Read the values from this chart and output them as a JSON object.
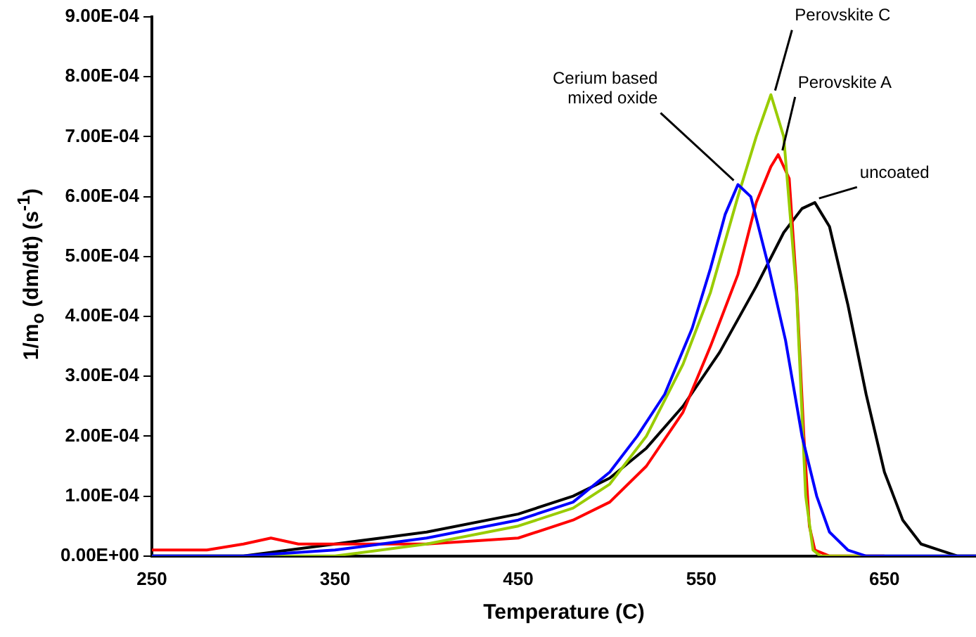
{
  "chart_data": {
    "type": "line",
    "xlabel": "Temperature (C)",
    "ylabel": "1/m$_{o}$ (dm/dt) (s$^{-1}$)",
    "xlim": [
      250,
      700
    ],
    "xticks": [
      250,
      350,
      450,
      550,
      650
    ],
    "ylim": [
      0,
      0.0009
    ],
    "yticks": [
      {
        "value": 0,
        "label": "0.00E+00"
      },
      {
        "value": 0.0001,
        "label": "1.00E-04"
      },
      {
        "value": 0.0002,
        "label": "2.00E-04"
      },
      {
        "value": 0.0003,
        "label": "3.00E-04"
      },
      {
        "value": 0.0004,
        "label": "4.00E-04"
      },
      {
        "value": 0.0005,
        "label": "5.00E-04"
      },
      {
        "value": 0.0006,
        "label": "6.00E-04"
      },
      {
        "value": 0.0007,
        "label": "7.00E-04"
      },
      {
        "value": 0.0008,
        "label": "8.00E-04"
      },
      {
        "value": 0.0009,
        "label": "9.00E-04"
      }
    ],
    "grid": false,
    "legend": false,
    "marker": "none",
    "line_style": "solid",
    "series": [
      {
        "name": "Cerium based mixed oxide",
        "color": "#0000ff",
        "x": [
          250,
          300,
          350,
          400,
          450,
          480,
          500,
          515,
          530,
          545,
          555,
          563,
          570,
          577,
          587,
          596,
          605,
          613,
          620,
          630,
          640,
          700
        ],
        "values": [
          0,
          0,
          1e-05,
          3e-05,
          6e-05,
          9e-05,
          0.00014,
          0.0002,
          0.00027,
          0.00038,
          0.00048,
          0.00057,
          0.00062,
          0.0006,
          0.00048,
          0.00036,
          0.0002,
          0.0001,
          4e-05,
          1e-05,
          0,
          0
        ]
      },
      {
        "name": "Perovskite C",
        "color": "#99cc00",
        "x": [
          250,
          350,
          400,
          450,
          480,
          500,
          520,
          540,
          555,
          570,
          580,
          588,
          595,
          602,
          607,
          611,
          615,
          625,
          700
        ],
        "values": [
          0,
          0,
          2e-05,
          5e-05,
          8e-05,
          0.00012,
          0.0002,
          0.00032,
          0.00044,
          0.0006,
          0.0007,
          0.00077,
          0.0007,
          0.00044,
          0.0001,
          1e-05,
          0,
          0,
          0
        ]
      },
      {
        "name": "Perovskite A",
        "color": "#ff0000",
        "x": [
          250,
          280,
          300,
          315,
          330,
          350,
          400,
          450,
          480,
          500,
          520,
          540,
          555,
          570,
          580,
          588,
          592,
          598,
          602,
          606,
          609,
          612,
          620,
          650
        ],
        "values": [
          1e-05,
          1e-05,
          2e-05,
          3e-05,
          2e-05,
          2e-05,
          2e-05,
          3e-05,
          6e-05,
          9e-05,
          0.00015,
          0.00024,
          0.00035,
          0.00047,
          0.00059,
          0.00065,
          0.00067,
          0.00063,
          0.00045,
          0.0002,
          5e-05,
          1e-05,
          0,
          0
        ]
      },
      {
        "name": "uncoated",
        "color": "#000000",
        "x": [
          250,
          300,
          350,
          400,
          450,
          480,
          500,
          520,
          540,
          560,
          580,
          595,
          605,
          612,
          620,
          630,
          640,
          650,
          660,
          670,
          680,
          690,
          700
        ],
        "values": [
          0,
          0,
          2e-05,
          4e-05,
          7e-05,
          0.0001,
          0.00013,
          0.00018,
          0.00025,
          0.00034,
          0.00045,
          0.00054,
          0.00058,
          0.00059,
          0.00055,
          0.00042,
          0.00027,
          0.00014,
          6e-05,
          2e-05,
          1e-05,
          0,
          0
        ]
      }
    ]
  }
}
